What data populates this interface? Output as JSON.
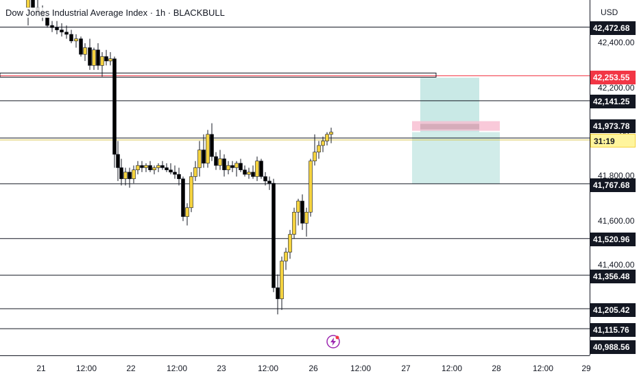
{
  "header": {
    "title": "Dow Jones Industrial Average Index · 1h · BLACKBULL",
    "currency": "USD"
  },
  "price_axis": {
    "ticks": [
      "42,400.00",
      "42,200.00",
      "41,800.00",
      "41,600.00",
      "41,400.00"
    ],
    "level_labels": [
      "42,472.68",
      "42,141.25",
      "41,973.78",
      "41,767.68",
      "41,520.96",
      "41,356.48",
      "41,205.42",
      "41,115.76",
      "40,988.56"
    ],
    "current_price_label": "42,253.55",
    "countdown_label": "31:19",
    "partial_tick": "00"
  },
  "time_axis": {
    "labels": [
      "21",
      "12:00",
      "22",
      "12:00",
      "23",
      "12:00",
      "26",
      "12:00",
      "27",
      "12:00",
      "28",
      "12:00",
      "29"
    ]
  },
  "chart_data": {
    "type": "candlestick",
    "symbol": "Dow Jones Industrial Average Index",
    "interval": "1h",
    "source": "BLACKBULL",
    "horizontal_levels": [
      42472.68,
      42253.55,
      42141.25,
      41973.78,
      41767.68,
      41520.96,
      41356.48,
      41205.42,
      41115.76,
      40988.56
    ],
    "position_tool": {
      "entry": 42000,
      "target": 42245,
      "stop": 41767.68
    },
    "colors": {
      "bull": "#f5d33f",
      "bear": "#000000",
      "level_line": "#131722",
      "current_price": "#f23645",
      "target_zone": "#b2dfdb",
      "stop_zone": "#f8bbd0"
    }
  }
}
